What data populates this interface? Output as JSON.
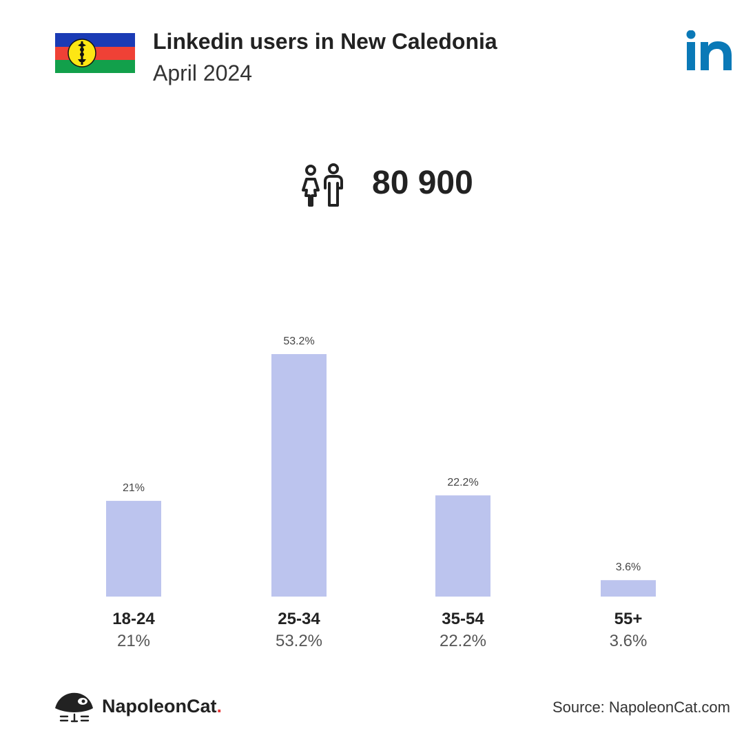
{
  "header": {
    "title": "Linkedin users in New Caledonia",
    "subtitle": "April 2024"
  },
  "summary": {
    "total_users": "80 900"
  },
  "chart_data": {
    "type": "bar",
    "categories": [
      "18-24",
      "25-34",
      "35-54",
      "55+"
    ],
    "values": [
      21,
      53.2,
      22.2,
      3.6
    ],
    "data_labels": [
      "21%",
      "53.2%",
      "22.2%",
      "3.6%"
    ],
    "ylim": [
      0,
      53.2
    ],
    "bar_color": "#bcc4ee",
    "grid": false
  },
  "footer": {
    "brand_name": "NapoleonCat",
    "brand_dot": ".",
    "source": "Source: NapoleonCat.com"
  },
  "colors": {
    "linkedin_blue": "#0a79b7",
    "flag_blue": "#1a3bb5",
    "flag_red": "#ef4136",
    "flag_green": "#12a04b",
    "flag_yellow": "#fde614",
    "brand_dot": "#e63c3c"
  },
  "icons": {
    "flag": "new-caledonia-flag-icon",
    "linkedin": "linkedin-logo-icon",
    "users": "users-icon",
    "brand": "napoleoncat-logo-icon"
  }
}
